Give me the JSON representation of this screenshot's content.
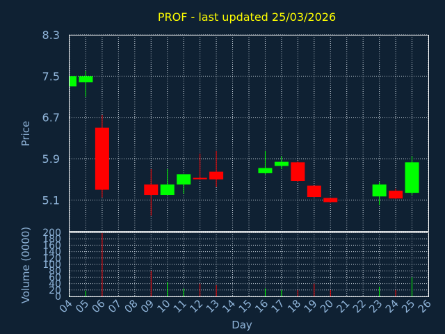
{
  "chart_data": {
    "type": "candlestick",
    "title": "PROF - last updated 25/03/2026",
    "xlabel": "Day",
    "price_axis": {
      "label": "Price",
      "ylim": [
        4.5,
        8.3
      ],
      "ticks": [
        "8.3",
        "7.5",
        "6.7",
        "5.9",
        "5.1"
      ],
      "tick_values": [
        8.3,
        7.5,
        6.7,
        5.9,
        5.1
      ]
    },
    "volume_axis": {
      "label": "Volume (0000)",
      "ylim": [
        0,
        200
      ],
      "ticks": [
        "200",
        "180",
        "160",
        "140",
        "120",
        "100",
        "80",
        "60",
        "40",
        "20",
        "0"
      ],
      "tick_values": [
        200,
        180,
        160,
        140,
        120,
        100,
        80,
        60,
        40,
        20,
        0
      ]
    },
    "x_ticks": [
      "04",
      "05",
      "06",
      "07",
      "08",
      "09",
      "10",
      "11",
      "12",
      "13",
      "14",
      "15",
      "16",
      "17",
      "18",
      "19",
      "20",
      "21",
      "22",
      "23",
      "24",
      "25",
      "26"
    ],
    "grid": true,
    "colors": {
      "background": "#0f2133",
      "up": "#00ff00",
      "down": "#ff0000",
      "title": "#ffff00",
      "axis_text": "#8fb4d9"
    },
    "candles": [
      {
        "day": "04",
        "open": 7.3,
        "close": 7.5,
        "high": 7.5,
        "low": 7.3,
        "volume": 2
      },
      {
        "day": "05",
        "open": 7.38,
        "close": 7.5,
        "high": 7.6,
        "low": 7.1,
        "volume": 18
      },
      {
        "day": "06",
        "open": 6.5,
        "close": 5.3,
        "high": 6.75,
        "low": 5.15,
        "volume": 200
      },
      {
        "day": "09",
        "open": 5.4,
        "close": 5.2,
        "high": 5.7,
        "low": 4.8,
        "volume": 80
      },
      {
        "day": "10",
        "open": 5.2,
        "close": 5.4,
        "high": 5.7,
        "low": 5.2,
        "volume": 45
      },
      {
        "day": "11",
        "open": 5.4,
        "close": 5.6,
        "high": 5.6,
        "low": 5.22,
        "volume": 25
      },
      {
        "day": "12",
        "open": 5.53,
        "close": 5.51,
        "high": 6.0,
        "low": 5.5,
        "volume": 40
      },
      {
        "day": "13",
        "open": 5.65,
        "close": 5.5,
        "high": 6.05,
        "low": 5.35,
        "volume": 35
      },
      {
        "day": "16",
        "open": 5.62,
        "close": 5.72,
        "high": 6.05,
        "low": 5.6,
        "volume": 25
      },
      {
        "day": "17",
        "open": 5.76,
        "close": 5.84,
        "high": 5.95,
        "low": 5.7,
        "volume": 20
      },
      {
        "day": "18",
        "open": 5.83,
        "close": 5.47,
        "high": 5.85,
        "low": 5.45,
        "volume": 20
      },
      {
        "day": "19",
        "open": 5.38,
        "close": 5.16,
        "high": 5.38,
        "low": 5.16,
        "volume": 40
      },
      {
        "day": "20",
        "open": 5.14,
        "close": 5.06,
        "high": 5.14,
        "low": 5.05,
        "volume": 20
      },
      {
        "day": "23",
        "open": 5.17,
        "close": 5.4,
        "high": 5.45,
        "low": 5.0,
        "volume": 30
      },
      {
        "day": "24",
        "open": 5.28,
        "close": 5.13,
        "high": 5.32,
        "low": 5.12,
        "volume": 20
      },
      {
        "day": "25",
        "open": 5.24,
        "close": 5.83,
        "high": 5.95,
        "low": 5.2,
        "volume": 60
      }
    ]
  }
}
